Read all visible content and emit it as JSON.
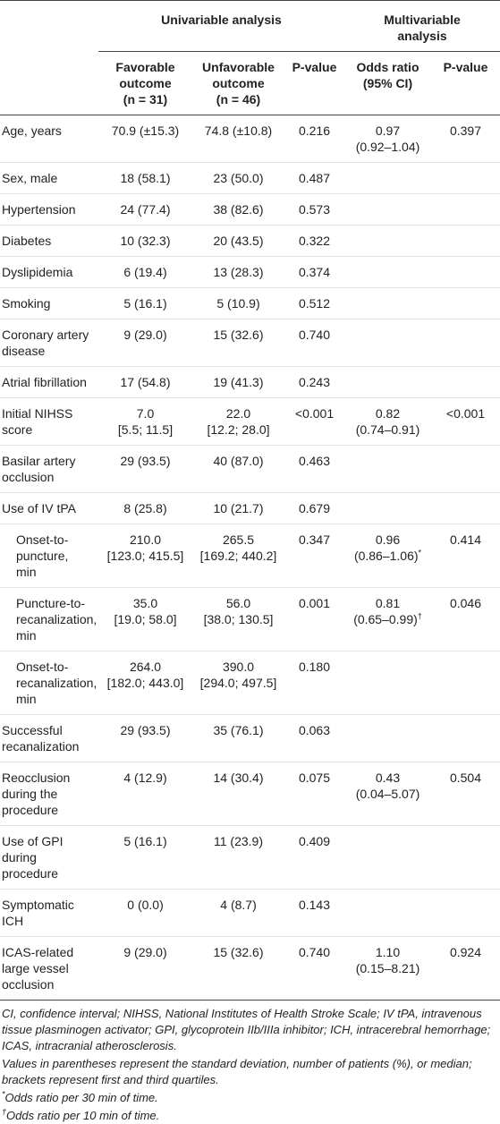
{
  "table": {
    "groups": [
      {
        "text": "Univariable analysis",
        "span": 3
      },
      {
        "text": [
          "Multivariable",
          "analysis"
        ],
        "span": 2
      }
    ],
    "subheaders": [
      [
        "Favorable",
        "outcome",
        "(n = 31)"
      ],
      [
        "Unfavorable",
        "outcome",
        "(n = 46)"
      ],
      "P-value",
      [
        "Odds ratio",
        "(95% CI)"
      ],
      "P-value"
    ],
    "rows": [
      {
        "label": "Age, years",
        "cells": [
          "70.9 (±15.3)",
          "74.8 (±10.8)",
          "0.216",
          [
            "0.97",
            "(0.92–1.04)"
          ],
          "0.397"
        ]
      },
      {
        "label": "Sex, male",
        "cells": [
          "18 (58.1)",
          "23 (50.0)",
          "0.487",
          null,
          null
        ]
      },
      {
        "label": "Hypertension",
        "cells": [
          "24 (77.4)",
          "38 (82.6)",
          "0.573",
          null,
          null
        ]
      },
      {
        "label": "Diabetes",
        "cells": [
          "10 (32.3)",
          "20 (43.5)",
          "0.322",
          null,
          null
        ]
      },
      {
        "label": "Dyslipidemia",
        "cells": [
          "6 (19.4)",
          "13 (28.3)",
          "0.374",
          null,
          null
        ]
      },
      {
        "label": "Smoking",
        "cells": [
          "5 (16.1)",
          "5 (10.9)",
          "0.512",
          null,
          null
        ]
      },
      {
        "label": [
          "Coronary artery",
          "disease"
        ],
        "cells": [
          "9 (29.0)",
          "15 (32.6)",
          "0.740",
          null,
          null
        ]
      },
      {
        "label": "Atrial fibrillation",
        "cells": [
          "17 (54.8)",
          "19 (41.3)",
          "0.243",
          null,
          null
        ]
      },
      {
        "label": [
          "Initial NIHSS",
          "score"
        ],
        "cells": [
          [
            "7.0",
            "[5.5; 11.5]"
          ],
          [
            "22.0",
            "[12.2; 28.0]"
          ],
          "<0.001",
          [
            "0.82",
            "(0.74–0.91)"
          ],
          "<0.001"
        ]
      },
      {
        "label": [
          "Basilar artery",
          "occlusion"
        ],
        "cells": [
          "29 (93.5)",
          "40 (87.0)",
          "0.463",
          null,
          null
        ]
      },
      {
        "label": "Use of IV tPA",
        "cells": [
          "8 (25.8)",
          "10 (21.7)",
          "0.679",
          null,
          null
        ]
      },
      {
        "label": [
          "Onset-to-",
          "puncture,",
          "min"
        ],
        "sub": true,
        "cells": [
          [
            "210.0",
            "[123.0; 415.5]"
          ],
          [
            "265.5",
            "[169.2; 440.2]"
          ],
          "0.347",
          [
            "0.96",
            {
              "text": "(0.86–1.06)",
              "sup": "*"
            }
          ],
          "0.414"
        ]
      },
      {
        "label": [
          "Puncture-to-",
          "recanalization,",
          "min"
        ],
        "sub": true,
        "cells": [
          [
            "35.0",
            "[19.0; 58.0]"
          ],
          [
            "56.0",
            "[38.0; 130.5]"
          ],
          "0.001",
          [
            "0.81",
            {
              "text": "(0.65–0.99)",
              "sup": "†"
            }
          ],
          "0.046"
        ]
      },
      {
        "label": [
          "Onset-to-",
          "recanalization,",
          "min"
        ],
        "sub": true,
        "cells": [
          [
            "264.0",
            "[182.0; 443.0]"
          ],
          [
            "390.0",
            "[294.0; 497.5]"
          ],
          "0.180",
          null,
          null
        ]
      },
      {
        "label": [
          "Successful",
          "recanalization"
        ],
        "cells": [
          "29 (93.5)",
          "35 (76.1)",
          "0.063",
          null,
          null
        ]
      },
      {
        "label": [
          "Reocclusion",
          "during the",
          "procedure"
        ],
        "cells": [
          "4 (12.9)",
          "14 (30.4)",
          "0.075",
          [
            "0.43",
            "(0.04–5.07)"
          ],
          "0.504"
        ]
      },
      {
        "label": [
          "Use of GPI",
          "during",
          "procedure"
        ],
        "cells": [
          "5 (16.1)",
          "11 (23.9)",
          "0.409",
          null,
          null
        ]
      },
      {
        "label": [
          "Symptomatic",
          "ICH"
        ],
        "cells": [
          "0 (0.0)",
          "4 (8.7)",
          "0.143",
          null,
          null
        ]
      },
      {
        "label": [
          "ICAS-related",
          "large vessel",
          "occlusion"
        ],
        "cells": [
          "9 (29.0)",
          "15 (32.6)",
          "0.740",
          [
            "1.10",
            "(0.15–8.21)"
          ],
          "0.924"
        ]
      }
    ]
  },
  "footnotes": [
    {
      "text": "CI, confidence interval; NIHSS, National Institutes of Health Stroke Scale; IV tPA, intravenous tissue plasminogen activator; GPI, glycoprotein IIb/IIIa inhibitor; ICH, intracerebral hemorrhage; ICAS, intracranial atherosclerosis."
    },
    {
      "text": "Values in parentheses represent the standard deviation, number of patients (%), or median; brackets represent first and third quartiles."
    },
    {
      "mark": "*",
      "text": "Odds ratio per 30 min of time."
    },
    {
      "mark": "†",
      "text": "Odds ratio per 10 min of time."
    }
  ]
}
